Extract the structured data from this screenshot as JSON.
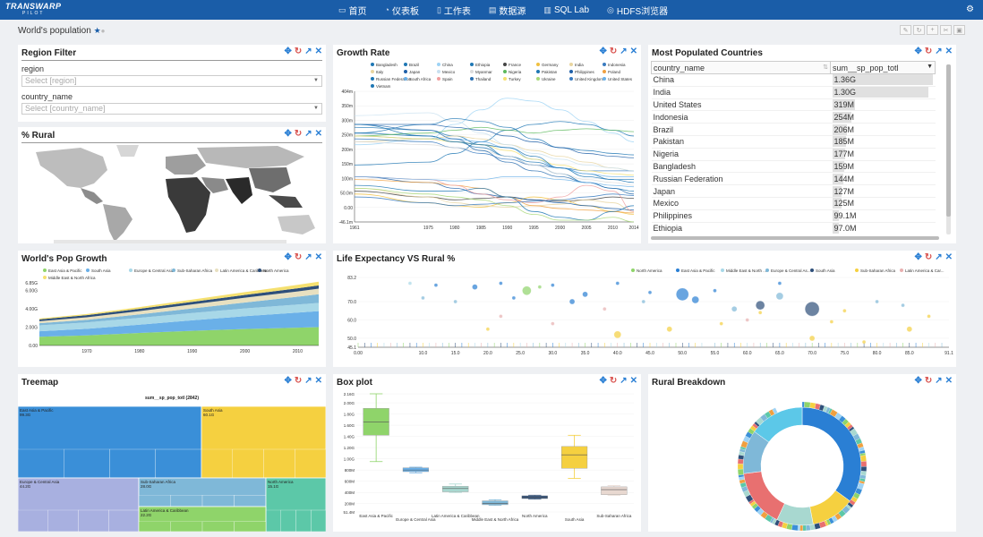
{
  "app": {
    "logo": "TRANSWARP",
    "logo_sub": "PILOT"
  },
  "nav": [
    {
      "icon": "laptop-icon",
      "glyph": "▭",
      "label": "首页"
    },
    {
      "icon": "dashboard-icon",
      "glyph": "◔",
      "label": "仪表板"
    },
    {
      "icon": "slice-icon",
      "glyph": "▯",
      "label": "工作表"
    },
    {
      "icon": "database-icon",
      "glyph": "▤",
      "label": "数据源"
    },
    {
      "icon": "sql-icon",
      "glyph": "▥",
      "label": "SQL Lab"
    },
    {
      "icon": "hdfs-icon",
      "glyph": "◎",
      "label": "HDFS浏览器"
    }
  ],
  "dashboard": {
    "title": "World's population"
  },
  "panels": {
    "region_filter": {
      "title": "Region Filter",
      "region_label": "region",
      "region_placeholder": "Select [region]",
      "country_label": "country_name",
      "country_placeholder": "Select [country_name]"
    },
    "rural": {
      "title": "% Rural"
    },
    "growth_rate": {
      "title": "Growth Rate"
    },
    "most_populated": {
      "title": "Most Populated Countries",
      "col1": "country_name",
      "col2": "sum__sp_pop_totl",
      "rows": [
        {
          "name": "China",
          "value": "1.36G",
          "frac": 1.0
        },
        {
          "name": "India",
          "value": "1.30G",
          "frac": 0.96
        },
        {
          "name": "United States",
          "value": "319M",
          "frac": 0.23
        },
        {
          "name": "Indonesia",
          "value": "254M",
          "frac": 0.19
        },
        {
          "name": "Brazil",
          "value": "206M",
          "frac": 0.15
        },
        {
          "name": "Pakistan",
          "value": "185M",
          "frac": 0.14
        },
        {
          "name": "Nigeria",
          "value": "177M",
          "frac": 0.13
        },
        {
          "name": "Bangladesh",
          "value": "159M",
          "frac": 0.12
        },
        {
          "name": "Russian Federation",
          "value": "144M",
          "frac": 0.11
        },
        {
          "name": "Japan",
          "value": "127M",
          "frac": 0.09
        },
        {
          "name": "Mexico",
          "value": "125M",
          "frac": 0.09
        },
        {
          "name": "Philippines",
          "value": "99.1M",
          "frac": 0.07
        },
        {
          "name": "Ethiopia",
          "value": "97.0M",
          "frac": 0.07
        }
      ]
    },
    "pop_growth": {
      "title": "World's Pop Growth"
    },
    "life_exp": {
      "title": "Life Expectancy VS Rural %"
    },
    "treemap": {
      "title": "Treemap",
      "header": "sum__sp_pop_totl (2842)"
    },
    "boxplot": {
      "title": "Box plot"
    },
    "rural_breakdown": {
      "title": "Rural Breakdown"
    }
  },
  "chart_data": [
    {
      "type": "line",
      "title": "Growth Rate",
      "x": [
        1961,
        1975,
        1980,
        1985,
        1990,
        1995,
        2000,
        2005,
        2010,
        2014
      ],
      "x_ticks": [
        "1961",
        "1975",
        "1980",
        "1985",
        "1990",
        "1995",
        "2000",
        "2005",
        "2010",
        "2014"
      ],
      "y_ticks": [
        "-46.1m",
        "0.00",
        "50.0m",
        "100m",
        "150m",
        "200m",
        "250m",
        "300m",
        "350m",
        "404m"
      ],
      "ylim": [
        -46.1,
        404
      ],
      "legend": [
        "Bangladesh",
        "Brazil",
        "China",
        "Ethiopia",
        "France",
        "Germany",
        "India",
        "Indonesia",
        "Italy",
        "Japan",
        "Mexico",
        "Myanmar",
        "Nigeria",
        "Pakistan",
        "Philippines",
        "Poland",
        "Russian Federation",
        "South Africa",
        "Spain",
        "Thailand",
        "Turkey",
        "Ukraine",
        "United Kingdom",
        "United States",
        "Vietnam"
      ],
      "legend_colors": [
        "#1f77b4",
        "#1f77b4",
        "#9ed3f5",
        "#1f77b4",
        "#444",
        "#f0c040",
        "#e8d5a0",
        "#3a7bbf",
        "#e8d5a0",
        "#1f5fa8",
        "#c8e0f0",
        "#dcdcdc",
        "#5cb85c",
        "#1f77b4",
        "#1f5fa8",
        "#f0a040",
        "#1f77b4",
        "#6ab0e8",
        "#f0a0a0",
        "#2a6fb0",
        "#f5e070",
        "#a8d878",
        "#3a7bbf",
        "#6ab0e8",
        "#1f77b4"
      ],
      "series_y": [
        [
          260,
          250,
          230,
          210,
          180,
          160,
          140,
          120,
          100,
          90
        ],
        [
          280,
          270,
          250,
          220,
          180,
          150,
          120,
          90,
          70,
          60
        ],
        [
          220,
          240,
          290,
          340,
          380,
          370,
          340,
          300,
          260,
          230
        ],
        [
          150,
          160,
          190,
          230,
          270,
          290,
          300,
          290,
          270,
          250
        ],
        [
          60,
          40,
          30,
          35,
          40,
          30,
          25,
          30,
          40,
          35
        ],
        [
          50,
          20,
          10,
          5,
          20,
          40,
          30,
          10,
          -10,
          -20
        ],
        [
          230,
          240,
          250,
          240,
          220,
          200,
          180,
          160,
          140,
          130
        ],
        [
          240,
          230,
          210,
          190,
          170,
          150,
          140,
          130,
          130,
          130
        ],
        [
          70,
          40,
          20,
          10,
          5,
          10,
          15,
          30,
          20,
          -10
        ],
        [
          110,
          90,
          70,
          50,
          40,
          30,
          20,
          10,
          0,
          -5
        ],
        [
          320,
          330,
          300,
          260,
          220,
          190,
          170,
          150,
          140,
          130
        ],
        [
          230,
          220,
          210,
          200,
          180,
          150,
          120,
          100,
          90,
          80
        ],
        [
          250,
          260,
          270,
          280,
          270,
          260,
          270,
          275,
          270,
          265
        ],
        [
          260,
          290,
          310,
          300,
          280,
          240,
          210,
          200,
          190,
          185
        ],
        [
          290,
          290,
          280,
          270,
          250,
          230,
          210,
          190,
          180,
          175
        ],
        [
          100,
          90,
          80,
          70,
          40,
          10,
          0,
          -5,
          -10,
          -15
        ],
        [
          80,
          60,
          60,
          70,
          40,
          -10,
          -30,
          -40,
          -10,
          10
        ],
        [
          250,
          240,
          240,
          230,
          210,
          170,
          140,
          120,
          110,
          110
        ],
        [
          110,
          100,
          80,
          50,
          30,
          20,
          40,
          80,
          60,
          -10
        ],
        [
          290,
          270,
          240,
          200,
          160,
          130,
          110,
          90,
          70,
          50
        ],
        [
          250,
          240,
          230,
          220,
          200,
          170,
          150,
          130,
          120,
          115
        ],
        [
          70,
          50,
          40,
          30,
          10,
          -20,
          -40,
          -40,
          -30,
          -46
        ],
        [
          40,
          20,
          10,
          15,
          20,
          25,
          30,
          40,
          50,
          45
        ],
        [
          110,
          100,
          95,
          100,
          110,
          110,
          100,
          90,
          80,
          75
        ],
        [
          290,
          250,
          230,
          220,
          210,
          180,
          140,
          110,
          100,
          100
        ]
      ]
    },
    {
      "type": "area",
      "title": "World's Pop Growth",
      "x": [
        1961,
        1970,
        1980,
        1990,
        2000,
        2010,
        2014
      ],
      "x_ticks": [
        "1970",
        "1980",
        "1990",
        "2000",
        "2010"
      ],
      "y_ticks": [
        "0.00",
        "2.00G",
        "4.00G",
        "6.00G",
        "6.85G"
      ],
      "ylim": [
        0,
        6.85
      ],
      "legend": [
        "East Asia & Pacific",
        "South Asia",
        "Europe & Central Asia",
        "Sub-Saharan Africa",
        "Latin America & Caribbean",
        "North America",
        "Middle East & North Africa"
      ],
      "series": [
        {
          "name": "East Asia & Pacific",
          "color": "#8fd46a",
          "values": [
            0.95,
            1.1,
            1.37,
            1.6,
            1.8,
            1.95,
            2.0
          ]
        },
        {
          "name": "South Asia",
          "color": "#6ab0e8",
          "values": [
            0.6,
            0.72,
            0.9,
            1.15,
            1.4,
            1.65,
            1.75
          ]
        },
        {
          "name": "Europe & Central Asia",
          "color": "#a8d8e8",
          "values": [
            0.65,
            0.7,
            0.75,
            0.8,
            0.85,
            0.88,
            0.9
          ]
        },
        {
          "name": "Sub-Saharan Africa",
          "color": "#7fb8d8",
          "values": [
            0.23,
            0.28,
            0.38,
            0.5,
            0.65,
            0.85,
            0.95
          ]
        },
        {
          "name": "Latin America & Caribbean",
          "color": "#e8e0c0",
          "values": [
            0.22,
            0.28,
            0.36,
            0.44,
            0.52,
            0.58,
            0.62
          ]
        },
        {
          "name": "North America",
          "color": "#2e4f7a",
          "values": [
            0.2,
            0.23,
            0.25,
            0.28,
            0.31,
            0.34,
            0.35
          ]
        },
        {
          "name": "Middle East & North Africa",
          "color": "#f5e070",
          "values": [
            0.1,
            0.13,
            0.18,
            0.25,
            0.31,
            0.38,
            0.4
          ]
        }
      ]
    },
    {
      "type": "scatter",
      "title": "Life Expectancy VS Rural %",
      "x_ticks": [
        "0.00",
        "10.0",
        "15.0",
        "20.0",
        "25.0",
        "30.0",
        "35.0",
        "40.0",
        "45.0",
        "50.0",
        "55.0",
        "60.0",
        "65.0",
        "70.0",
        "75.0",
        "80.0",
        "85.0",
        "91.1"
      ],
      "y_ticks": [
        "45.1",
        "50.0",
        "60.0",
        "70.0",
        "83.2"
      ],
      "xlim": [
        0,
        91.1
      ],
      "ylim": [
        45.1,
        83.2
      ],
      "legend": [
        "North America",
        "East Asia & Pacific",
        "Middle East & North ...",
        "Europe & Central As...",
        "South Asia",
        "Sub-Saharan Africa",
        "Latin America & Car..."
      ],
      "legend_colors": [
        "#8fd46a",
        "#2a7fd4",
        "#a8d8e8",
        "#7fb8d8",
        "#2e4f7a",
        "#f5d040",
        "#e8b0b0"
      ]
    },
    {
      "type": "box",
      "title": "Box plot",
      "categories": [
        "East Asia & Pacific",
        "Europe & Central Asia",
        "Latin America & Caribbean",
        "Middle East & North Africa",
        "North America",
        "South Asia",
        "Sub-Saharan Africa"
      ],
      "colors": [
        "#8fd46a",
        "#6ab0e8",
        "#a8d8d0",
        "#7fb8d8",
        "#2e4f7a",
        "#f5d040",
        "#e8d8d0"
      ],
      "boxes": [
        {
          "min": 0.95,
          "q1": 1.42,
          "med": 1.66,
          "q3": 1.9,
          "max": 2.16
        },
        {
          "min": 0.75,
          "q1": 0.77,
          "med": 0.8,
          "q3": 0.84,
          "max": 0.85
        },
        {
          "min": 0.4,
          "q1": 0.41,
          "med": 0.47,
          "q3": 0.51,
          "max": 0.55
        },
        {
          "min": 0.17,
          "q1": 0.18,
          "med": 0.2,
          "q3": 0.25,
          "max": 0.27
        },
        {
          "min": 0.28,
          "q1": 0.29,
          "med": 0.31,
          "q3": 0.34,
          "max": 0.35
        },
        {
          "min": 0.65,
          "q1": 0.83,
          "med": 1.07,
          "q3": 1.22,
          "max": 1.42
        },
        {
          "min": 0.35,
          "q1": 0.36,
          "med": 0.45,
          "q3": 0.5,
          "max": 0.52
        }
      ],
      "y_ticks": [
        "51.4M",
        "200M",
        "400M",
        "600M",
        "800M",
        "1.00G",
        "1.20G",
        "1.40G",
        "1.60G",
        "1.80G",
        "2.00G",
        "2.16G"
      ],
      "ylim": [
        0.0514,
        2.16
      ]
    },
    {
      "type": "treemap",
      "title": "sum__sp_pop_totl (2842)",
      "regions": [
        {
          "name": "East Asia & Pacific",
          "value": "99.3G"
        },
        {
          "name": "South Asia",
          "value": "60.1G"
        },
        {
          "name": "Europe & Central Asia",
          "value": "44.2G"
        },
        {
          "name": "Sub-Saharan Africa",
          "value": "28.0G"
        },
        {
          "name": "North America",
          "value": "15.1G"
        },
        {
          "name": "Latin America & Caribbean",
          "value": "22.2G"
        }
      ]
    },
    {
      "type": "pie",
      "title": "Rural Breakdown"
    }
  ]
}
